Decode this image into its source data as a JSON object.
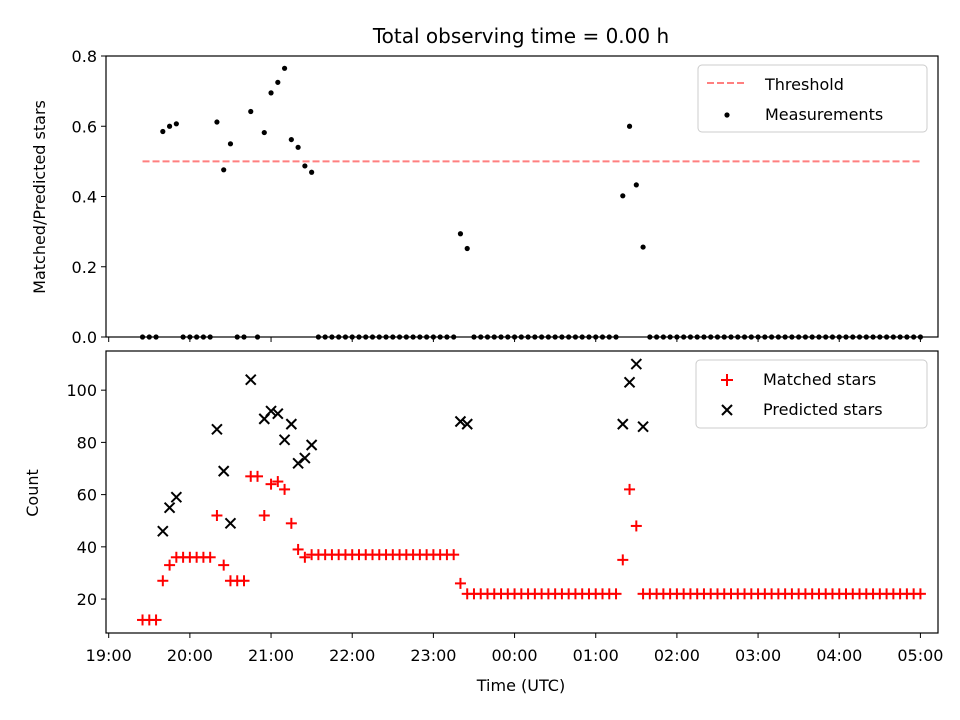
{
  "chart_data": [
    {
      "type": "scatter",
      "title": "Total observing time = 0.00 h",
      "xlabel": "",
      "ylabel": "Matched/Predicted stars",
      "ylim": [
        0,
        0.8
      ],
      "yticks": [
        "0.0",
        "0.2",
        "0.4",
        "0.6",
        "0.8"
      ],
      "xlim": [
        "18:58",
        "05:13"
      ],
      "legend_position": "top-right",
      "threshold": {
        "name": "Threshold",
        "value": 0.5,
        "x_range": [
          "19:25",
          "05:00"
        ],
        "color": "#ff7f7f"
      },
      "series": [
        {
          "name": "Measurements",
          "color": "#000000",
          "points": [
            [
              "19:25",
              0
            ],
            [
              "19:30",
              0
            ],
            [
              "19:35",
              0
            ],
            [
              "19:40",
              0.585
            ],
            [
              "19:45",
              0.6
            ],
            [
              "19:50",
              0.607
            ],
            [
              "19:55",
              0
            ],
            [
              "20:00",
              0
            ],
            [
              "20:05",
              0
            ],
            [
              "20:10",
              0
            ],
            [
              "20:15",
              0
            ],
            [
              "20:20",
              0.612
            ],
            [
              "20:25",
              0.476
            ],
            [
              "20:30",
              0.55
            ],
            [
              "20:35",
              0
            ],
            [
              "20:40",
              0
            ],
            [
              "20:45",
              0.642
            ],
            [
              "20:50",
              0
            ],
            [
              "20:55",
              0.582
            ],
            [
              "21:00",
              0.695
            ],
            [
              "21:05",
              0.725
            ],
            [
              "21:10",
              0.765
            ],
            [
              "21:15",
              0.562
            ],
            [
              "21:20",
              0.54
            ],
            [
              "21:25",
              0.487
            ],
            [
              "21:30",
              0.469
            ],
            [
              "21:35",
              0
            ],
            [
              "21:40",
              0
            ],
            [
              "21:45",
              0
            ],
            [
              "21:50",
              0
            ],
            [
              "21:55",
              0
            ],
            [
              "22:00",
              0
            ],
            [
              "22:05",
              0
            ],
            [
              "22:10",
              0
            ],
            [
              "22:15",
              0
            ],
            [
              "22:20",
              0
            ],
            [
              "22:25",
              0
            ],
            [
              "22:30",
              0
            ],
            [
              "22:35",
              0
            ],
            [
              "22:40",
              0
            ],
            [
              "22:45",
              0
            ],
            [
              "22:50",
              0
            ],
            [
              "22:55",
              0
            ],
            [
              "23:00",
              0
            ],
            [
              "23:05",
              0
            ],
            [
              "23:10",
              0
            ],
            [
              "23:15",
              0
            ],
            [
              "23:20",
              0.294
            ],
            [
              "23:25",
              0.252
            ],
            [
              "23:30",
              0
            ],
            [
              "23:35",
              0
            ],
            [
              "23:40",
              0
            ],
            [
              "23:45",
              0
            ],
            [
              "23:50",
              0
            ],
            [
              "23:55",
              0
            ],
            [
              "00:00",
              0
            ],
            [
              "00:05",
              0
            ],
            [
              "00:10",
              0
            ],
            [
              "00:15",
              0
            ],
            [
              "00:20",
              0
            ],
            [
              "00:25",
              0
            ],
            [
              "00:30",
              0
            ],
            [
              "00:35",
              0
            ],
            [
              "00:40",
              0
            ],
            [
              "00:45",
              0
            ],
            [
              "00:50",
              0
            ],
            [
              "00:55",
              0
            ],
            [
              "01:00",
              0
            ],
            [
              "01:05",
              0
            ],
            [
              "01:10",
              0
            ],
            [
              "01:15",
              0
            ],
            [
              "01:20",
              0.402
            ],
            [
              "01:25",
              0.6
            ],
            [
              "01:30",
              0.433
            ],
            [
              "01:35",
              0.256
            ],
            [
              "01:40",
              0
            ],
            [
              "01:45",
              0
            ],
            [
              "01:50",
              0
            ],
            [
              "01:55",
              0
            ],
            [
              "02:00",
              0
            ],
            [
              "02:05",
              0
            ],
            [
              "02:10",
              0
            ],
            [
              "02:15",
              0
            ],
            [
              "02:20",
              0
            ],
            [
              "02:25",
              0
            ],
            [
              "02:30",
              0
            ],
            [
              "02:35",
              0
            ],
            [
              "02:40",
              0
            ],
            [
              "02:45",
              0
            ],
            [
              "02:50",
              0
            ],
            [
              "02:55",
              0
            ],
            [
              "03:00",
              0
            ],
            [
              "03:05",
              0
            ],
            [
              "03:10",
              0
            ],
            [
              "03:15",
              0
            ],
            [
              "03:20",
              0
            ],
            [
              "03:25",
              0
            ],
            [
              "03:30",
              0
            ],
            [
              "03:35",
              0
            ],
            [
              "03:40",
              0
            ],
            [
              "03:45",
              0
            ],
            [
              "03:50",
              0
            ],
            [
              "03:55",
              0
            ],
            [
              "04:00",
              0
            ],
            [
              "04:05",
              0
            ],
            [
              "04:10",
              0
            ],
            [
              "04:15",
              0
            ],
            [
              "04:20",
              0
            ],
            [
              "04:25",
              0
            ],
            [
              "04:30",
              0
            ],
            [
              "04:35",
              0
            ],
            [
              "04:40",
              0
            ],
            [
              "04:45",
              0
            ],
            [
              "04:50",
              0
            ],
            [
              "04:55",
              0
            ],
            [
              "05:00",
              0
            ]
          ]
        }
      ]
    },
    {
      "type": "scatter",
      "title": "",
      "xlabel": "Time (UTC)",
      "ylabel": "Count",
      "ylim": [
        7,
        115
      ],
      "yticks": [
        "20",
        "40",
        "60",
        "80",
        "100"
      ],
      "xlim": [
        "18:58",
        "05:13"
      ],
      "xticks": [
        "19:00",
        "20:00",
        "21:00",
        "22:00",
        "23:00",
        "00:00",
        "01:00",
        "02:00",
        "03:00",
        "04:00",
        "05:00"
      ],
      "legend_position": "top-right",
      "series": [
        {
          "name": "Matched stars",
          "marker": "plus",
          "color": "#ff0000",
          "points": [
            [
              "19:25",
              12
            ],
            [
              "19:30",
              12
            ],
            [
              "19:35",
              12
            ],
            [
              "19:40",
              27
            ],
            [
              "19:45",
              33
            ],
            [
              "19:50",
              36
            ],
            [
              "19:55",
              36
            ],
            [
              "20:00",
              36
            ],
            [
              "20:05",
              36
            ],
            [
              "20:10",
              36
            ],
            [
              "20:15",
              36
            ],
            [
              "20:20",
              52
            ],
            [
              "20:25",
              33
            ],
            [
              "20:30",
              27
            ],
            [
              "20:35",
              27
            ],
            [
              "20:40",
              27
            ],
            [
              "20:45",
              67
            ],
            [
              "20:50",
              67
            ],
            [
              "20:55",
              52
            ],
            [
              "21:00",
              64
            ],
            [
              "21:05",
              65
            ],
            [
              "21:10",
              62
            ],
            [
              "21:15",
              49
            ],
            [
              "21:20",
              39
            ],
            [
              "21:25",
              36
            ],
            [
              "21:30",
              37
            ],
            [
              "21:35",
              37
            ],
            [
              "21:40",
              37
            ],
            [
              "21:45",
              37
            ],
            [
              "21:50",
              37
            ],
            [
              "21:55",
              37
            ],
            [
              "22:00",
              37
            ],
            [
              "22:05",
              37
            ],
            [
              "22:10",
              37
            ],
            [
              "22:15",
              37
            ],
            [
              "22:20",
              37
            ],
            [
              "22:25",
              37
            ],
            [
              "22:30",
              37
            ],
            [
              "22:35",
              37
            ],
            [
              "22:40",
              37
            ],
            [
              "22:45",
              37
            ],
            [
              "22:50",
              37
            ],
            [
              "22:55",
              37
            ],
            [
              "23:00",
              37
            ],
            [
              "23:05",
              37
            ],
            [
              "23:10",
              37
            ],
            [
              "23:15",
              37
            ],
            [
              "23:20",
              26
            ],
            [
              "23:25",
              22
            ],
            [
              "23:30",
              22
            ],
            [
              "23:35",
              22
            ],
            [
              "23:40",
              22
            ],
            [
              "23:45",
              22
            ],
            [
              "23:50",
              22
            ],
            [
              "23:55",
              22
            ],
            [
              "00:00",
              22
            ],
            [
              "00:05",
              22
            ],
            [
              "00:10",
              22
            ],
            [
              "00:15",
              22
            ],
            [
              "00:20",
              22
            ],
            [
              "00:25",
              22
            ],
            [
              "00:30",
              22
            ],
            [
              "00:35",
              22
            ],
            [
              "00:40",
              22
            ],
            [
              "00:45",
              22
            ],
            [
              "00:50",
              22
            ],
            [
              "00:55",
              22
            ],
            [
              "01:00",
              22
            ],
            [
              "01:05",
              22
            ],
            [
              "01:10",
              22
            ],
            [
              "01:15",
              22
            ],
            [
              "01:20",
              35
            ],
            [
              "01:25",
              62
            ],
            [
              "01:30",
              48
            ],
            [
              "01:35",
              22
            ],
            [
              "01:40",
              22
            ],
            [
              "01:45",
              22
            ],
            [
              "01:50",
              22
            ],
            [
              "01:55",
              22
            ],
            [
              "02:00",
              22
            ],
            [
              "02:05",
              22
            ],
            [
              "02:10",
              22
            ],
            [
              "02:15",
              22
            ],
            [
              "02:20",
              22
            ],
            [
              "02:25",
              22
            ],
            [
              "02:30",
              22
            ],
            [
              "02:35",
              22
            ],
            [
              "02:40",
              22
            ],
            [
              "02:45",
              22
            ],
            [
              "02:50",
              22
            ],
            [
              "02:55",
              22
            ],
            [
              "03:00",
              22
            ],
            [
              "03:05",
              22
            ],
            [
              "03:10",
              22
            ],
            [
              "03:15",
              22
            ],
            [
              "03:20",
              22
            ],
            [
              "03:25",
              22
            ],
            [
              "03:30",
              22
            ],
            [
              "03:35",
              22
            ],
            [
              "03:40",
              22
            ],
            [
              "03:45",
              22
            ],
            [
              "03:50",
              22
            ],
            [
              "03:55",
              22
            ],
            [
              "04:00",
              22
            ],
            [
              "04:05",
              22
            ],
            [
              "04:10",
              22
            ],
            [
              "04:15",
              22
            ],
            [
              "04:20",
              22
            ],
            [
              "04:25",
              22
            ],
            [
              "04:30",
              22
            ],
            [
              "04:35",
              22
            ],
            [
              "04:40",
              22
            ],
            [
              "04:45",
              22
            ],
            [
              "04:50",
              22
            ],
            [
              "04:55",
              22
            ],
            [
              "05:00",
              22
            ]
          ]
        },
        {
          "name": "Predicted stars",
          "marker": "x",
          "color": "#000000",
          "points": [
            [
              "19:40",
              46
            ],
            [
              "19:45",
              55
            ],
            [
              "19:50",
              59
            ],
            [
              "20:20",
              85
            ],
            [
              "20:25",
              69
            ],
            [
              "20:30",
              49
            ],
            [
              "20:45",
              104
            ],
            [
              "20:55",
              89
            ],
            [
              "21:00",
              92
            ],
            [
              "21:05",
              91
            ],
            [
              "21:10",
              81
            ],
            [
              "21:15",
              87
            ],
            [
              "21:20",
              72
            ],
            [
              "21:25",
              74
            ],
            [
              "21:30",
              79
            ],
            [
              "23:20",
              88
            ],
            [
              "23:25",
              87
            ],
            [
              "01:20",
              87
            ],
            [
              "01:25",
              103
            ],
            [
              "01:30",
              110
            ],
            [
              "01:35",
              86
            ]
          ]
        }
      ]
    }
  ]
}
